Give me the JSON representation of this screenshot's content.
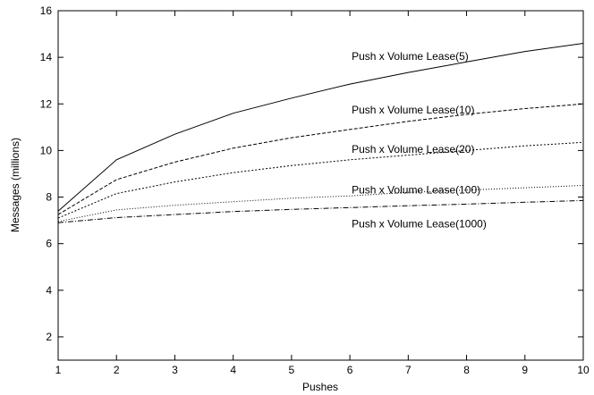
{
  "chart_data": {
    "type": "line",
    "xlabel": "Pushes",
    "ylabel": "Messages (millions)",
    "xlim": [
      1,
      10
    ],
    "ylim": [
      1,
      16
    ],
    "xticks": [
      "1",
      "2",
      "3",
      "4",
      "5",
      "6",
      "7",
      "8",
      "9",
      "10"
    ],
    "yticks": [
      "2",
      "4",
      "6",
      "8",
      "10",
      "12",
      "14",
      "16"
    ],
    "grid": false,
    "legend": "inline-labels",
    "x": [
      1,
      2,
      3,
      4,
      5,
      6,
      7,
      8,
      9,
      10
    ],
    "series": [
      {
        "name": "Push x Volume Lease(5)",
        "style": "solid",
        "values": [
          7.4,
          9.6,
          10.7,
          11.6,
          12.25,
          12.85,
          13.35,
          13.8,
          14.25,
          14.6
        ]
      },
      {
        "name": "Push x Volume Lease(10)",
        "style": "dashed",
        "values": [
          7.25,
          8.75,
          9.5,
          10.1,
          10.55,
          10.9,
          11.25,
          11.55,
          11.8,
          12.0
        ]
      },
      {
        "name": "Push x Volume Lease(20)",
        "style": "dotted",
        "values": [
          7.1,
          8.15,
          8.65,
          9.05,
          9.35,
          9.6,
          9.8,
          10.0,
          10.2,
          10.35
        ]
      },
      {
        "name": "Push x Volume Lease(100)",
        "style": "fine-dotted",
        "values": [
          6.95,
          7.45,
          7.65,
          7.8,
          7.95,
          8.05,
          8.2,
          8.3,
          8.4,
          8.5
        ]
      },
      {
        "name": "Push x Volume Lease(1000)",
        "style": "dash-dot",
        "values": [
          6.9,
          7.12,
          7.25,
          7.38,
          7.47,
          7.55,
          7.63,
          7.7,
          7.78,
          7.85
        ]
      }
    ]
  }
}
